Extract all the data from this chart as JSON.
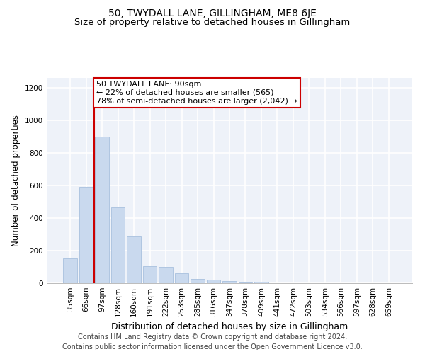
{
  "title": "50, TWYDALL LANE, GILLINGHAM, ME8 6JE",
  "subtitle": "Size of property relative to detached houses in Gillingham",
  "xlabel": "Distribution of detached houses by size in Gillingham",
  "ylabel": "Number of detached properties",
  "categories": [
    "35sqm",
    "66sqm",
    "97sqm",
    "128sqm",
    "160sqm",
    "191sqm",
    "222sqm",
    "253sqm",
    "285sqm",
    "316sqm",
    "347sqm",
    "378sqm",
    "409sqm",
    "441sqm",
    "472sqm",
    "503sqm",
    "534sqm",
    "566sqm",
    "597sqm",
    "628sqm",
    "659sqm"
  ],
  "bar_values": [
    150,
    590,
    900,
    465,
    285,
    105,
    100,
    60,
    28,
    22,
    13,
    5,
    10,
    0,
    0,
    0,
    0,
    0,
    0,
    0,
    0
  ],
  "bar_color": "#c9d9ee",
  "bar_edgecolor": "#a8c0de",
  "vline_index": 2,
  "vline_color": "#cc0000",
  "annotation_text": "50 TWYDALL LANE: 90sqm\n← 22% of detached houses are smaller (565)\n78% of semi-detached houses are larger (2,042) →",
  "annotation_box_facecolor": "#ffffff",
  "annotation_box_edgecolor": "#cc0000",
  "ylim": [
    0,
    1260
  ],
  "yticks": [
    0,
    200,
    400,
    600,
    800,
    1000,
    1200
  ],
  "footer_text": "Contains HM Land Registry data © Crown copyright and database right 2024.\nContains public sector information licensed under the Open Government Licence v3.0.",
  "bg_color": "#ffffff",
  "plot_bg_color": "#eef2f9",
  "grid_color": "#ffffff",
  "title_fontsize": 10,
  "subtitle_fontsize": 9.5,
  "xlabel_fontsize": 9,
  "ylabel_fontsize": 8.5,
  "footer_fontsize": 7,
  "tick_fontsize": 7.5,
  "annot_fontsize": 8
}
